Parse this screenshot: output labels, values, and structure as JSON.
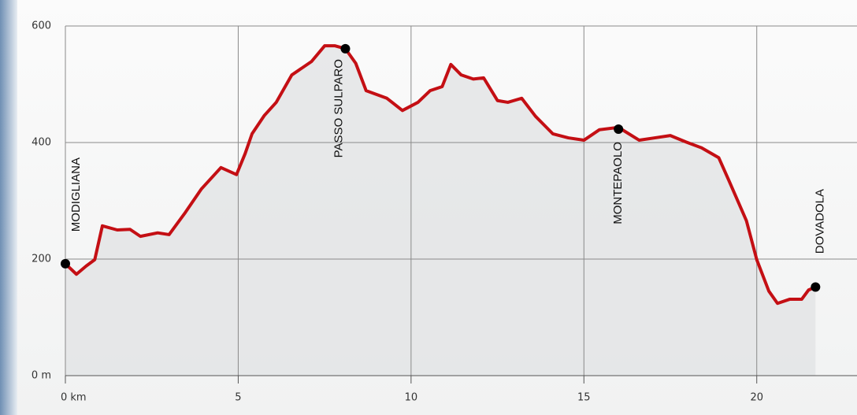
{
  "chart_data": {
    "type": "line",
    "x": [
      0,
      0.32,
      0.6,
      0.85,
      1.07,
      1.5,
      1.87,
      2.17,
      2.67,
      3.0,
      3.47,
      3.93,
      4.5,
      4.95,
      5.2,
      5.4,
      5.75,
      6.1,
      6.55,
      7.12,
      7.5,
      7.8,
      8.1,
      8.4,
      8.7,
      9.3,
      9.75,
      10.2,
      10.55,
      10.9,
      11.15,
      11.45,
      11.8,
      12.1,
      12.5,
      12.8,
      13.2,
      13.6,
      14.1,
      14.55,
      15.0,
      15.45,
      16.0,
      16.6,
      17.05,
      17.5,
      17.95,
      18.4,
      18.9,
      19.2,
      19.7,
      20.0,
      20.35,
      20.6,
      20.95,
      21.3,
      21.5,
      21.7
    ],
    "series": [
      {
        "color": "#c40f14",
        "values": [
          192,
          174,
          188,
          199,
          257,
          250,
          251,
          239,
          245,
          242,
          280,
          320,
          357,
          345,
          381,
          415,
          446,
          469,
          516,
          539,
          566,
          566,
          561,
          536,
          489,
          476,
          455,
          469,
          489,
          496,
          534,
          516,
          509,
          511,
          472,
          469,
          476,
          445,
          415,
          408,
          404,
          422,
          426,
          404,
          408,
          412,
          401,
          391,
          374,
          334,
          266,
          199,
          145,
          124,
          131,
          131,
          147,
          152
        ]
      }
    ],
    "annotations": [
      {
        "label": "MODIGLIANA",
        "x": 0,
        "y": 192
      },
      {
        "label": "PASSO SULPARO",
        "x": 8.1,
        "y": 561
      },
      {
        "label": "MONTEPAOLO",
        "x": 16,
        "y": 423
      },
      {
        "label": "DOVADOLA",
        "x": 21.7,
        "y": 152
      }
    ],
    "xlim": [
      0,
      22.9
    ],
    "ylim": [
      0,
      600
    ],
    "xticks": [
      {
        "value": 0,
        "label": "0 km"
      },
      5,
      10,
      15,
      20
    ],
    "yticks": [
      {
        "value": 0,
        "label": "0 m"
      },
      200,
      400,
      600
    ],
    "grid": true
  }
}
